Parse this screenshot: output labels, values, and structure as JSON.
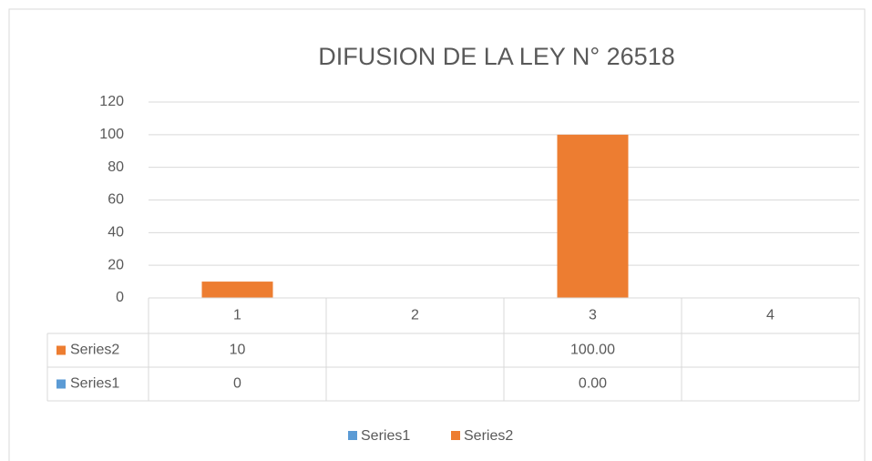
{
  "chart_data": {
    "type": "bar",
    "title": "DIFUSION DE LA LEY N° 26518",
    "categories": [
      "1",
      "2",
      "3",
      "4"
    ],
    "series": [
      {
        "name": "Series1",
        "color": "#5b9bd5",
        "values": [
          0,
          null,
          0,
          null
        ],
        "value_labels": [
          "0",
          null,
          "0.00",
          null
        ]
      },
      {
        "name": "Series2",
        "color": "#ed7d31",
        "values": [
          10,
          null,
          100,
          null
        ],
        "value_labels": [
          "10",
          null,
          "100.00",
          null
        ]
      }
    ],
    "ylim": [
      0,
      120
    ],
    "yticks": [
      0,
      20,
      40,
      60,
      80,
      100,
      120
    ],
    "grid": true,
    "data_table": true,
    "legend": "bottom"
  }
}
